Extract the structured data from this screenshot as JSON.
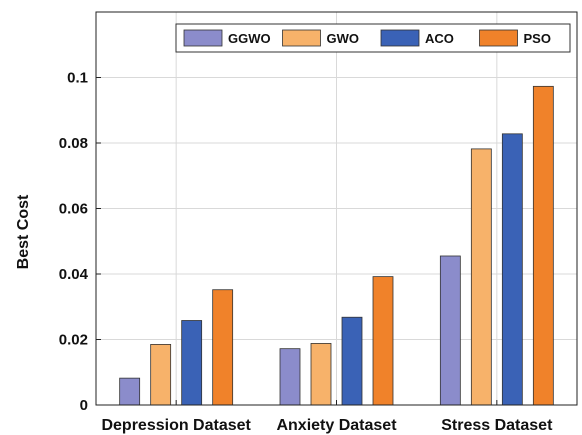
{
  "chart_data": {
    "type": "bar",
    "title": "",
    "xlabel": "",
    "ylabel": "Best Cost",
    "ylim": [
      0,
      0.12
    ],
    "yticks": [
      0,
      0.02,
      0.04,
      0.06,
      0.08,
      0.1
    ],
    "ytick_labels": [
      "0",
      "0.02",
      "0.04",
      "0.06",
      "0.08",
      "0.1"
    ],
    "grid": true,
    "legend_position": "top-right",
    "categories": [
      "Depression Dataset",
      "Anxiety Dataset",
      "Stress Dataset"
    ],
    "series": [
      {
        "name": "GGWO",
        "color": "#8b8ccb",
        "values": [
          0.0082,
          0.0172,
          0.0455
        ]
      },
      {
        "name": "GWO",
        "color": "#f7b26a",
        "values": [
          0.0185,
          0.0188,
          0.0782
        ]
      },
      {
        "name": "ACO",
        "color": "#3a62b6",
        "values": [
          0.0258,
          0.0268,
          0.0828
        ]
      },
      {
        "name": "PSO",
        "color": "#f0822a",
        "values": [
          0.0352,
          0.0392,
          0.0973
        ]
      }
    ]
  }
}
